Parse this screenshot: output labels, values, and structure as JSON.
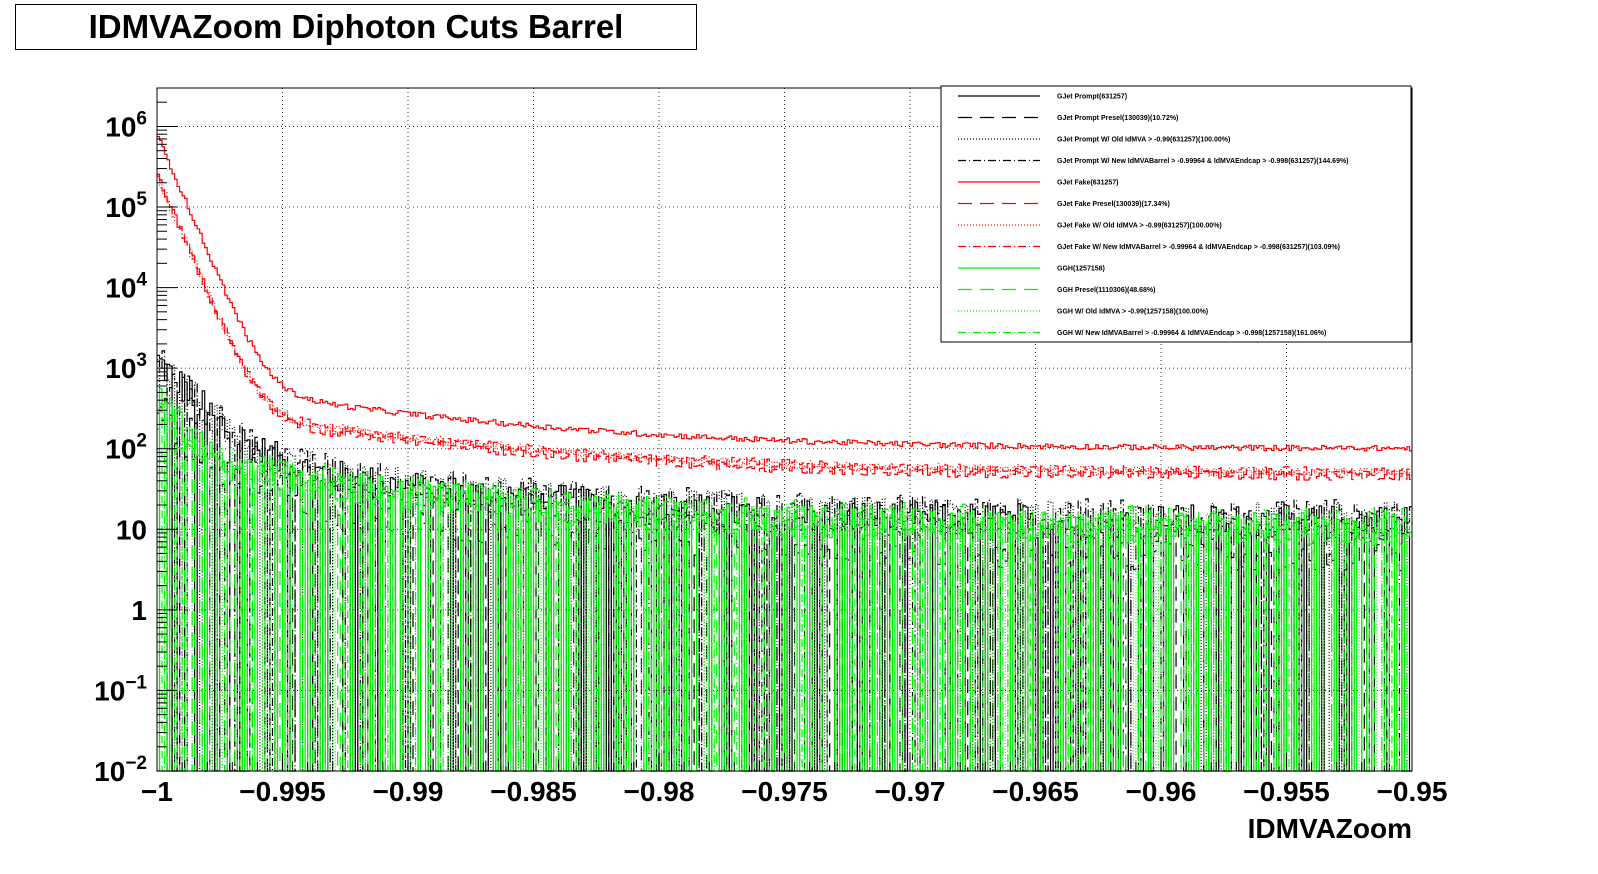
{
  "title": "IDMVAZoom Diphoton Cuts Barrel",
  "chart_data": {
    "type": "line",
    "subtype": "step-histogram",
    "title": "IDMVAZoom Diphoton Cuts Barrel",
    "xlabel": "IDMVAZoom",
    "ylabel": "",
    "xlim": [
      -1.0,
      -0.95
    ],
    "ylim": [
      0.01,
      3000000
    ],
    "yscale": "log",
    "grid": true,
    "legend_position": "top-right",
    "x_ticks": [
      "−1",
      "−0.995",
      "−0.99",
      "−0.985",
      "−0.98",
      "−0.975",
      "−0.97",
      "−0.965",
      "−0.96",
      "−0.955",
      "−0.95"
    ],
    "x_tick_values": [
      -1.0,
      -0.995,
      -0.99,
      -0.985,
      -0.98,
      -0.975,
      -0.97,
      -0.965,
      -0.96,
      -0.955,
      -0.95
    ],
    "y_ticks": [
      {
        "value": 1000000,
        "base": "10",
        "exp": "6"
      },
      {
        "value": 100000,
        "base": "10",
        "exp": "5"
      },
      {
        "value": 10000,
        "base": "10",
        "exp": "4"
      },
      {
        "value": 1000,
        "base": "10",
        "exp": "3"
      },
      {
        "value": 100,
        "base": "10",
        "exp": "2"
      },
      {
        "value": 10,
        "base": "10",
        "exp": ""
      },
      {
        "value": 1,
        "base": "1",
        "exp": ""
      },
      {
        "value": 0.1,
        "base": "10",
        "exp": "−1"
      },
      {
        "value": 0.01,
        "base": "10",
        "exp": "−2"
      }
    ],
    "bins": 500,
    "series": [
      {
        "name": "GJet Prompt(631257)",
        "color": "#000000",
        "dash": "solid",
        "model": {
          "peak": 1200,
          "floor": 12,
          "decay": 0.0012,
          "noise": 0.5,
          "zero_frac": 0.25
        }
      },
      {
        "name": "GJet Prompt Presel(130039)(10.72%)",
        "color": "#000000",
        "dash": "long-dash",
        "model": {
          "peak": 300,
          "floor": 6,
          "decay": 0.0012,
          "noise": 0.7,
          "zero_frac": 0.35
        }
      },
      {
        "name": "GJet Prompt W/ Old IdMVA > -0.99(631257)(100.00%)",
        "color": "#000000",
        "dash": "dot",
        "model": {
          "peak": 1200,
          "floor": 13,
          "decay": 0.0012,
          "noise": 0.5,
          "zero_frac": 0.22
        }
      },
      {
        "name": "GJet Prompt W/ New IdMVABarrel > -0.99964 & IdMVAEndcap > -0.998(631257)(144.69%)",
        "color": "#000000",
        "dash": "dash-dot",
        "model": {
          "peak": 1200,
          "floor": 14,
          "decay": 0.0012,
          "noise": 0.5,
          "zero_frac": 0.2
        }
      },
      {
        "name": "GJet Fake(631257)",
        "color": "#ff0000",
        "dash": "solid",
        "model": {
          "peak": 800000,
          "floor": 100,
          "decay": 0.0006,
          "noise": 0.08,
          "zero_frac": 0
        }
      },
      {
        "name": "GJet Fake Presel(130039)(17.34%)",
        "color": "#ff0000",
        "dash": "long-dash",
        "model": {
          "peak": 250000,
          "floor": 45,
          "decay": 0.0006,
          "noise": 0.12,
          "zero_frac": 0
        }
      },
      {
        "name": "GJet Fake W/ Old IdMVA > -0.99(631257)(100.00%)",
        "color": "#ff0000",
        "dash": "dot",
        "model": {
          "peak": 250000,
          "floor": 50,
          "decay": 0.0006,
          "noise": 0.12,
          "zero_frac": 0
        }
      },
      {
        "name": "GJet Fake W/ New IdMVABarrel > -0.99964 & IdMVAEndcap > -0.998(631257)(103.09%)",
        "color": "#ff0000",
        "dash": "dash-dot",
        "model": {
          "peak": 250000,
          "floor": 52,
          "decay": 0.0006,
          "noise": 0.12,
          "zero_frac": 0
        }
      },
      {
        "name": "GGH(1257158)",
        "color": "#00ee00",
        "dash": "solid",
        "model": {
          "peak": 400,
          "floor": 10,
          "decay": 0.0008,
          "noise": 0.45,
          "zero_frac": 0.22
        }
      },
      {
        "name": "GGH Presel(1110306)(48.68%)",
        "color": "#00ee00",
        "dash": "long-dash",
        "model": {
          "peak": 200,
          "floor": 10,
          "decay": 0.0008,
          "noise": 0.45,
          "zero_frac": 0.25
        }
      },
      {
        "name": "GGH W/ Old IdMVA > -0.99(1257158)(100.00%)",
        "color": "#00ee00",
        "dash": "dot",
        "model": {
          "peak": 400,
          "floor": 11,
          "decay": 0.0008,
          "noise": 0.45,
          "zero_frac": 0.22
        }
      },
      {
        "name": "GGH W/ New IdMVABarrel > -0.99964 & IdMVAEndcap > -0.998(1257158)(161.06%)",
        "color": "#00ee00",
        "dash": "dash-dot",
        "model": {
          "peak": 400,
          "floor": 12,
          "decay": 0.0008,
          "noise": 0.45,
          "zero_frac": 0.2
        }
      }
    ]
  }
}
